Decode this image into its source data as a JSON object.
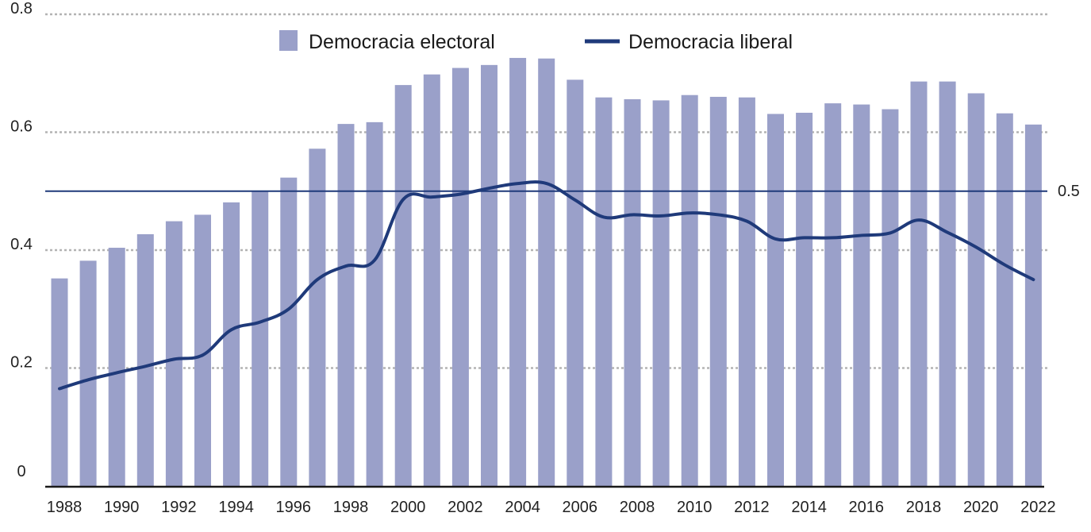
{
  "chart_data": {
    "type": "bar",
    "title": "",
    "xlabel": "",
    "ylabel": "",
    "ylim": [
      0,
      0.8
    ],
    "y_ticks": [
      0,
      0.2,
      0.4,
      0.6,
      0.8
    ],
    "y_tick_labels": [
      "0",
      "0.2",
      "0.4",
      "0.6",
      "0.8"
    ],
    "grid": true,
    "legend_position": "top-center",
    "categories": [
      1988,
      1989,
      1990,
      1991,
      1992,
      1993,
      1994,
      1995,
      1996,
      1997,
      1998,
      1999,
      2000,
      2001,
      2002,
      2003,
      2004,
      2005,
      2006,
      2007,
      2008,
      2009,
      2010,
      2011,
      2012,
      2013,
      2014,
      2015,
      2016,
      2017,
      2018,
      2019,
      2020,
      2021,
      2022
    ],
    "x_tick_labels": [
      "1988",
      "1990",
      "1992",
      "1994",
      "1996",
      "1998",
      "2000",
      "2002",
      "2004",
      "2006",
      "2008",
      "2010",
      "2012",
      "2014",
      "2016",
      "2018",
      "2020",
      "2022"
    ],
    "series": [
      {
        "name": "Democracia electoral",
        "kind": "bar",
        "color": "#9aa0c9",
        "values": [
          0.352,
          0.382,
          0.404,
          0.427,
          0.449,
          0.46,
          0.481,
          0.5,
          0.523,
          0.572,
          0.614,
          0.617,
          0.68,
          0.698,
          0.709,
          0.714,
          0.726,
          0.725,
          0.689,
          0.659,
          0.656,
          0.654,
          0.663,
          0.66,
          0.659,
          0.631,
          0.633,
          0.649,
          0.647,
          0.639,
          0.686,
          0.686,
          0.666,
          0.632,
          0.613
        ]
      },
      {
        "name": "Democracia liberal",
        "kind": "line",
        "color": "#1f3a7a",
        "values": [
          0.165,
          0.18,
          0.192,
          0.203,
          0.215,
          0.222,
          0.265,
          0.278,
          0.3,
          0.35,
          0.373,
          0.383,
          0.486,
          0.49,
          0.495,
          0.505,
          0.513,
          0.513,
          0.485,
          0.456,
          0.46,
          0.458,
          0.463,
          0.46,
          0.449,
          0.419,
          0.421,
          0.421,
          0.425,
          0.429,
          0.451,
          0.43,
          0.405,
          0.375,
          0.35
        ]
      }
    ],
    "reference_line": {
      "value": 0.5,
      "label": "0.5",
      "color": "#1f3a7a"
    }
  }
}
